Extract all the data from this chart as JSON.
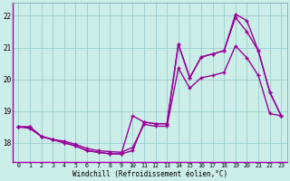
{
  "xlabel": "Windchill (Refroidissement éolien,°C)",
  "bg_color": "#cceee8",
  "line_color": "#990099",
  "grid_color": "#99cccc",
  "x_data": [
    0,
    1,
    2,
    3,
    4,
    5,
    6,
    7,
    8,
    9,
    10,
    11,
    12,
    13,
    14,
    15,
    16,
    17,
    18,
    19,
    20,
    21,
    22,
    23
  ],
  "line1": [
    18.5,
    18.5,
    18.2,
    18.1,
    18.0,
    17.9,
    17.75,
    17.7,
    17.65,
    17.65,
    17.75,
    18.65,
    18.6,
    18.6,
    21.1,
    20.05,
    20.7,
    20.8,
    20.9,
    21.95,
    21.5,
    20.9,
    19.6,
    18.85
  ],
  "line2": [
    18.5,
    18.5,
    18.2,
    18.1,
    18.0,
    17.9,
    17.75,
    17.7,
    17.65,
    17.65,
    18.85,
    18.65,
    18.6,
    18.6,
    21.1,
    20.05,
    20.7,
    20.8,
    20.9,
    22.05,
    21.85,
    20.9,
    19.6,
    18.85
  ],
  "line3": [
    18.5,
    18.45,
    18.2,
    18.1,
    18.05,
    17.95,
    17.82,
    17.75,
    17.72,
    17.7,
    17.85,
    18.58,
    18.52,
    18.52,
    20.35,
    19.72,
    20.05,
    20.12,
    20.22,
    21.05,
    20.68,
    20.12,
    18.92,
    18.85
  ],
  "ylim_min": 17.4,
  "ylim_max": 22.4,
  "yticks": [
    18,
    19,
    20,
    21,
    22
  ],
  "xticks": [
    0,
    1,
    2,
    3,
    4,
    5,
    6,
    7,
    8,
    9,
    10,
    11,
    12,
    13,
    14,
    15,
    16,
    17,
    18,
    19,
    20,
    21,
    22,
    23
  ]
}
